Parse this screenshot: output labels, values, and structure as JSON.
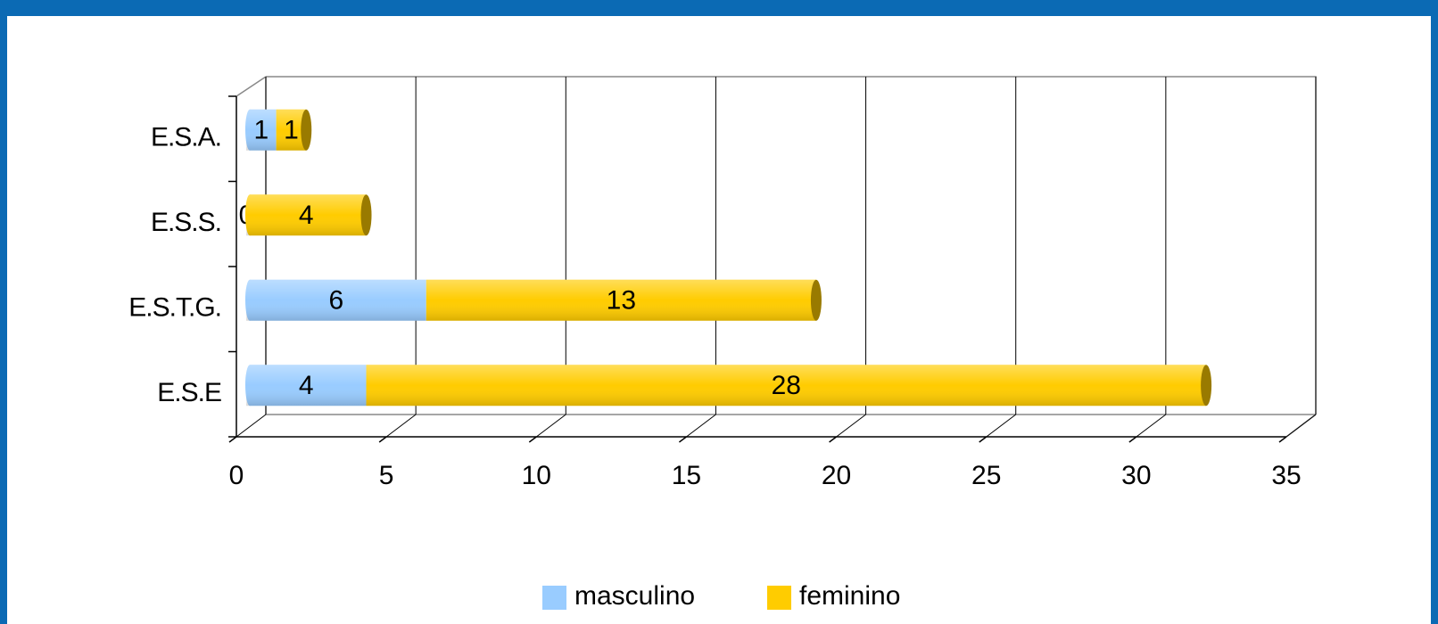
{
  "chart_data": {
    "type": "bar",
    "orientation": "horizontal",
    "stacked": true,
    "categories": [
      "E.S.A.",
      "E.S.S.",
      "E.S.T.G.",
      "E.S.E"
    ],
    "series": [
      {
        "name": "masculino",
        "color": "#99ccff",
        "values": [
          1,
          0,
          6,
          4
        ]
      },
      {
        "name": "feminino",
        "color": "#ffcc00",
        "values": [
          1,
          4,
          13,
          28
        ]
      }
    ],
    "xlim": [
      0,
      35
    ],
    "xticks": [
      0,
      5,
      10,
      15,
      20,
      25,
      30,
      35
    ],
    "grid": true,
    "legend": "bottom"
  }
}
